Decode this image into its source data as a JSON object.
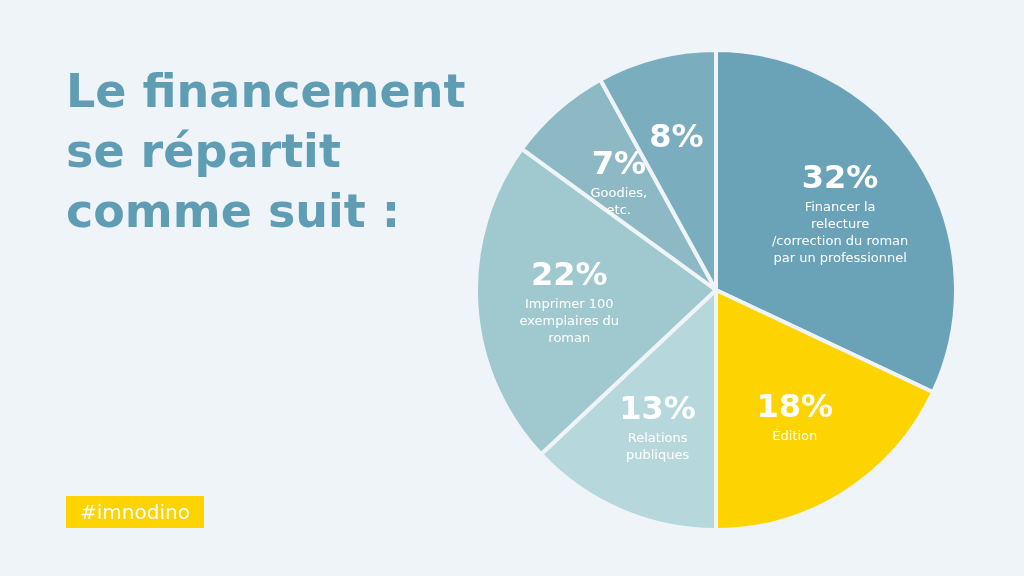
{
  "chart_data": {
    "type": "pie",
    "title": "Le financement se répartit comme suit :",
    "categories": [
      "Financer la relecture /correction du roman par un professionnel",
      "Édition",
      "Relations publiques",
      "Imprimer 100 exemplaires du roman",
      "Goodies, etc.",
      null
    ],
    "values": [
      32,
      18,
      13,
      22,
      7,
      8
    ],
    "colors": [
      "#6aa3b8",
      "#fdd400",
      "#b6d8dc",
      "#a0c8cf",
      "#8db9c5",
      "#7aaebe"
    ],
    "value_labels": [
      "32%",
      "18%",
      "13%",
      "22%",
      "7%",
      "8%"
    ],
    "legend": false,
    "annotations": [
      "#imnodino"
    ]
  }
}
